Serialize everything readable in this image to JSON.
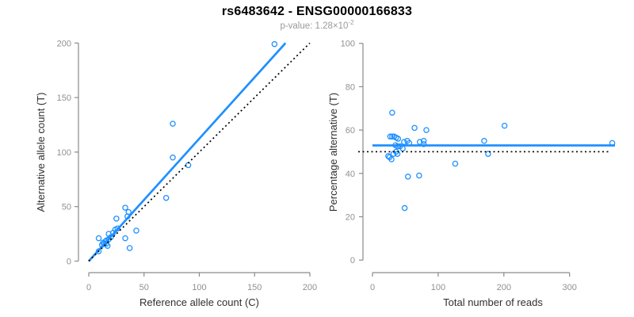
{
  "header": {
    "title": "rs6483642 - ENSG00000166833",
    "subtitle_main": "p-value: 1.28×10",
    "subtitle_exp": "-2"
  },
  "colors": {
    "point_blue": "#1E90FF",
    "line_blue": "#1E90FF",
    "identity_black": "#000000",
    "axis_gray": "#8a8a8a",
    "tick_label_gray": "#909090",
    "axis_title_dark": "#303030"
  },
  "chart_data": [
    {
      "id": "allele-counts",
      "type": "scatter",
      "title": "",
      "xlabel": "Reference allele count (C)",
      "ylabel": "Alternative allele count (T)",
      "xlim": [
        0,
        200
      ],
      "ylim": [
        0,
        200
      ],
      "xticks": [
        0,
        50,
        100,
        150,
        200
      ],
      "yticks": [
        0,
        50,
        100,
        150,
        200
      ],
      "grid": false,
      "legend": "none",
      "points": [
        [
          9,
          9
        ],
        [
          12,
          15
        ],
        [
          13,
          17
        ],
        [
          14,
          16
        ],
        [
          15,
          18
        ],
        [
          16,
          16
        ],
        [
          17,
          14
        ],
        [
          9,
          21
        ],
        [
          18,
          25
        ],
        [
          16,
          19
        ],
        [
          18,
          20
        ],
        [
          20,
          22
        ],
        [
          22,
          26
        ],
        [
          24,
          29
        ],
        [
          26,
          30
        ],
        [
          25,
          39
        ],
        [
          33,
          49
        ],
        [
          36,
          45
        ],
        [
          35,
          41
        ],
        [
          33,
          21
        ],
        [
          37,
          12
        ],
        [
          43,
          28
        ],
        [
          70,
          58
        ],
        [
          76,
          95
        ],
        [
          76,
          126
        ],
        [
          90,
          88
        ],
        [
          168,
          199
        ]
      ],
      "lines": [
        {
          "name": "fitted-ratio-line",
          "style": "solid",
          "color_key": "line_blue",
          "x1": 0,
          "y1": 0,
          "x2": 178,
          "y2": 200,
          "slope": 1.124
        },
        {
          "name": "identity-line",
          "style": "dotted",
          "color_key": "identity_black",
          "x1": 0,
          "y1": 0,
          "x2": 200,
          "y2": 200,
          "slope": 1.0
        }
      ],
      "hlines": []
    },
    {
      "id": "percentage-vs-reads",
      "type": "scatter",
      "title": "",
      "xlabel": "Total number of reads",
      "ylabel": "Percentage alternative (T)",
      "xlim": [
        0,
        370
      ],
      "ylim": [
        0,
        100
      ],
      "xticks": [
        0,
        100,
        200,
        300
      ],
      "yticks": [
        0,
        20,
        40,
        60,
        80,
        100
      ],
      "grid": false,
      "legend": "none",
      "points": [
        [
          30,
          68
        ],
        [
          27,
          57
        ],
        [
          30,
          57
        ],
        [
          33,
          57
        ],
        [
          36,
          56.5
        ],
        [
          39,
          56
        ],
        [
          35,
          53
        ],
        [
          38,
          52.5
        ],
        [
          42,
          52.5
        ],
        [
          46,
          51.5
        ],
        [
          32,
          49
        ],
        [
          36,
          50
        ],
        [
          38,
          49
        ],
        [
          24,
          48
        ],
        [
          26,
          47.5
        ],
        [
          29,
          46.5
        ],
        [
          48,
          54.5
        ],
        [
          53,
          55
        ],
        [
          56,
          54
        ],
        [
          64,
          61
        ],
        [
          82,
          60
        ],
        [
          72,
          54.5
        ],
        [
          78,
          55
        ],
        [
          78,
          53.5
        ],
        [
          71,
          39
        ],
        [
          54,
          38.5
        ],
        [
          49,
          24
        ],
        [
          126,
          44.5
        ],
        [
          170,
          55
        ],
        [
          176,
          49
        ],
        [
          201,
          62
        ],
        [
          365,
          54
        ]
      ],
      "lines": [],
      "hlines": [
        {
          "name": "mean-percentage-line",
          "style": "solid",
          "color_key": "line_blue",
          "y": 52.9
        },
        {
          "name": "fifty-percent-line",
          "style": "dotted",
          "color_key": "identity_black",
          "y": 50
        }
      ]
    }
  ]
}
